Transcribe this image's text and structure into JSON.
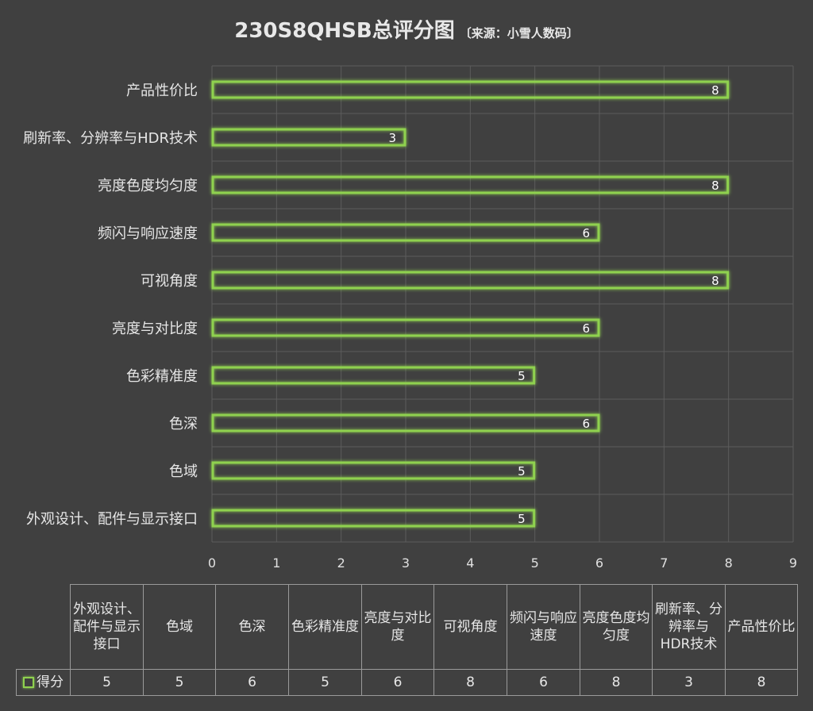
{
  "title": {
    "main": "230S8QHSB总评分图",
    "source": "〔来源：小雪人数码〕"
  },
  "chart_data": {
    "type": "bar",
    "orientation": "horizontal",
    "categories": [
      "外观设计、配件与显示接口",
      "色域",
      "色深",
      "色彩精准度",
      "亮度与对比度",
      "可视角度",
      "频闪与响应速度",
      "亮度色度均匀度",
      "刷新率、分辨率与HDR技术",
      "产品性价比"
    ],
    "series": [
      {
        "name": "得分",
        "values": [
          5,
          5,
          6,
          5,
          6,
          8,
          6,
          8,
          3,
          8
        ]
      }
    ],
    "xlim": [
      0,
      9
    ],
    "xticks": [
      0,
      1,
      2,
      3,
      4,
      5,
      6,
      7,
      8,
      9
    ],
    "grid": true,
    "data_labels": true,
    "data_table": true,
    "colors": {
      "background": "#404040",
      "bar_outline": "#8fd14f",
      "grid": "#5c5c5c"
    }
  },
  "table": {
    "headers": [
      "外观设计、配件与显示接口",
      "色域",
      "色深",
      "色彩精准度",
      "亮度与对比度",
      "可视角度",
      "频闪与响应速度",
      "亮度色度均匀度",
      "刷新率、分辨率与HDR技术",
      "产品性价比"
    ],
    "series_label": "得分",
    "values": [
      "5",
      "5",
      "6",
      "5",
      "6",
      "8",
      "6",
      "8",
      "3",
      "8"
    ]
  }
}
